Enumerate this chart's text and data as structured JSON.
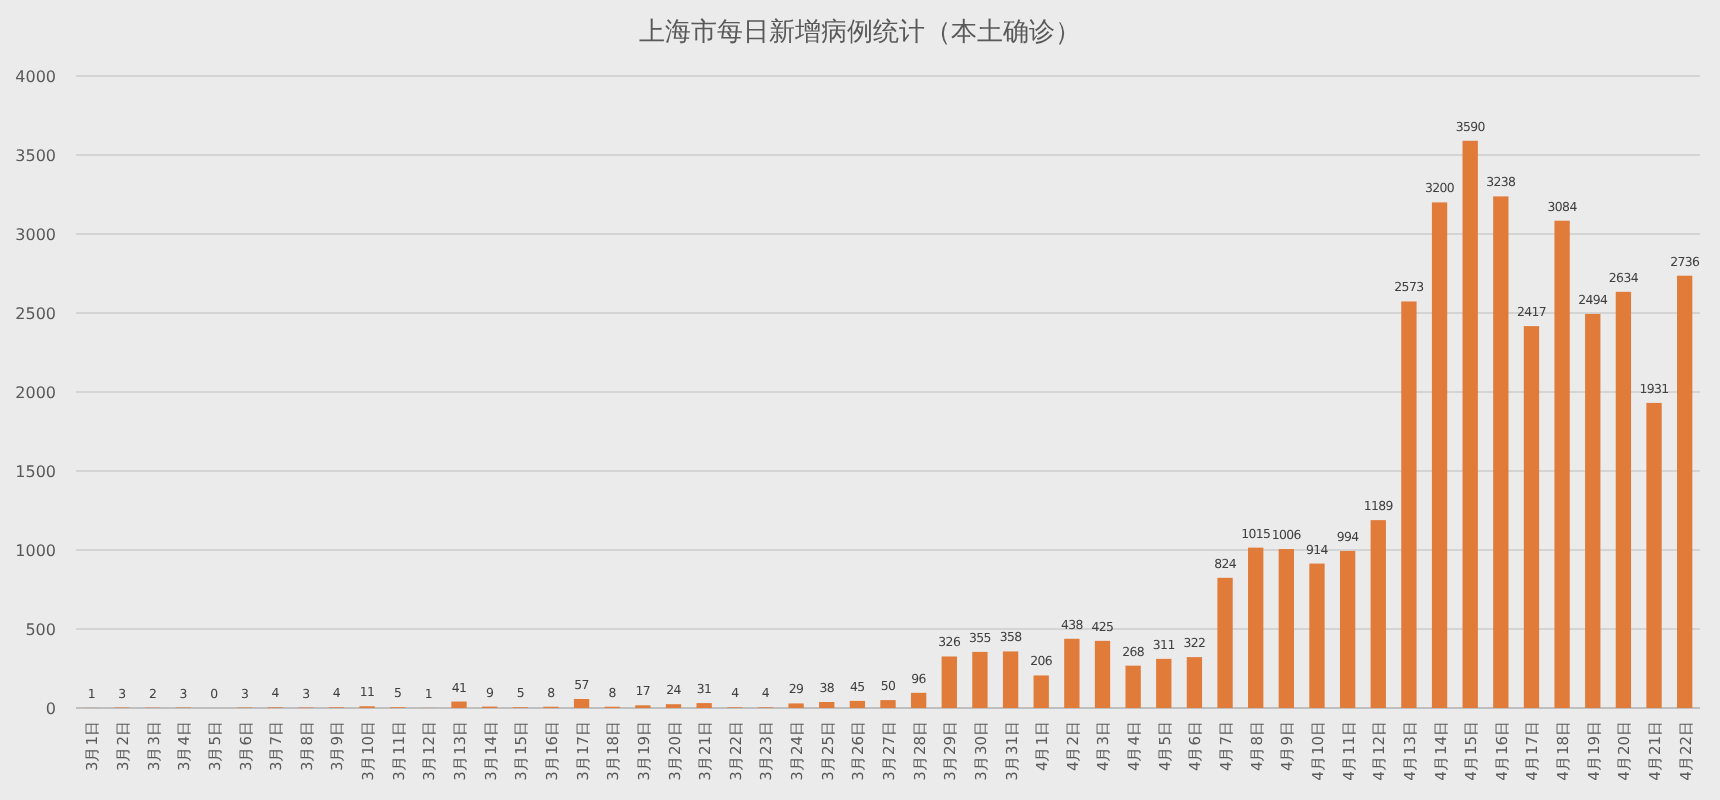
{
  "chart_data": {
    "type": "bar",
    "title": "上海市每日新增病例统计（本土确诊）",
    "categories": [
      "3月1日",
      "3月2日",
      "3月3日",
      "3月4日",
      "3月5日",
      "3月6日",
      "3月7日",
      "3月8日",
      "3月9日",
      "3月10日",
      "3月11日",
      "3月12日",
      "3月13日",
      "3月14日",
      "3月15日",
      "3月16日",
      "3月17日",
      "3月18日",
      "3月19日",
      "3月20日",
      "3月21日",
      "3月22日",
      "3月23日",
      "3月24日",
      "3月25日",
      "3月26日",
      "3月27日",
      "3月28日",
      "3月29日",
      "3月30日",
      "3月31日",
      "4月1日",
      "4月2日",
      "4月3日",
      "4月4日",
      "4月5日",
      "4月6日",
      "4月7日",
      "4月8日",
      "4月9日",
      "4月10日",
      "4月11日",
      "4月12日",
      "4月13日",
      "4月14日",
      "4月15日",
      "4月16日",
      "4月17日",
      "4月18日",
      "4月19日",
      "4月20日",
      "4月21日",
      "4月22日"
    ],
    "values": [
      1,
      3,
      2,
      3,
      0,
      3,
      4,
      3,
      4,
      11,
      5,
      1,
      41,
      9,
      5,
      8,
      57,
      8,
      17,
      24,
      31,
      4,
      4,
      29,
      38,
      45,
      50,
      96,
      326,
      355,
      358,
      206,
      438,
      425,
      268,
      311,
      322,
      824,
      1015,
      1006,
      914,
      994,
      1189,
      2573,
      3200,
      3590,
      3238,
      2417,
      3084,
      2494,
      2634,
      1931,
      2736
    ],
    "color": "#e07b39",
    "ylim": [
      0,
      4000
    ],
    "yticks": [
      0,
      500,
      1000,
      1500,
      2000,
      2500,
      3000,
      3500,
      4000
    ],
    "grid": "y",
    "data_labels": true
  }
}
